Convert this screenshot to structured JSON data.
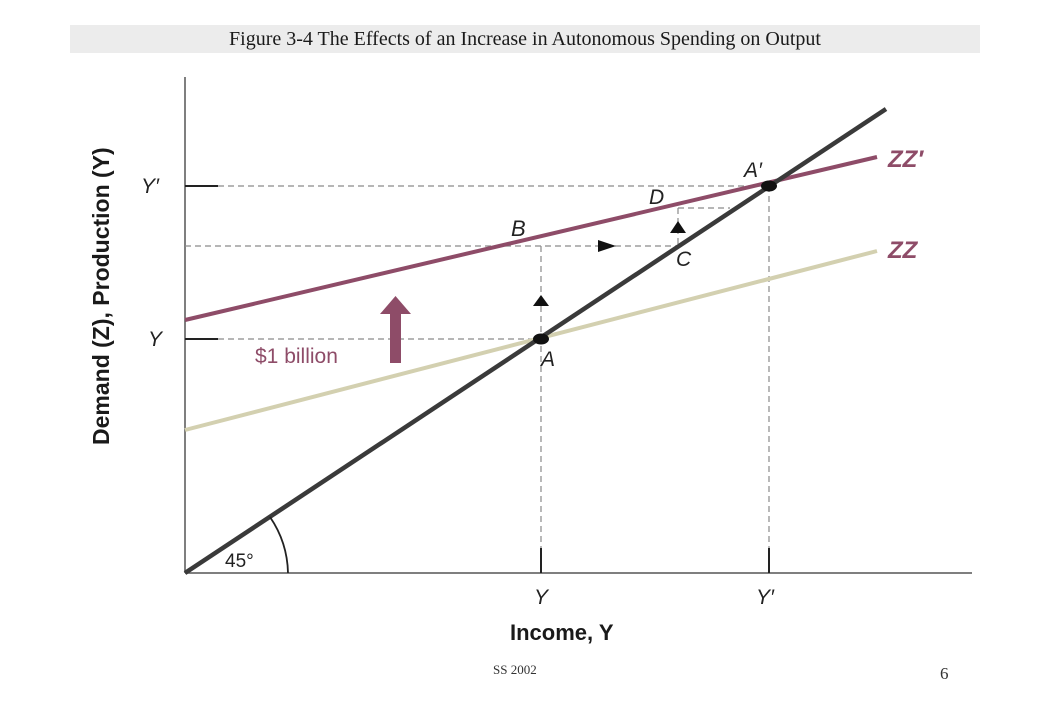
{
  "title": "Figure 3-4  The Effects of an Increase in Autonomous Spending on Output",
  "diagram": {
    "y_axis_label": "Demand (Z), Production (Y)",
    "x_axis_label": "Income, Y",
    "x_ticks": [
      "Y",
      "Y′"
    ],
    "y_ticks": [
      "Y′",
      "Y"
    ],
    "curves": {
      "zz": "ZZ",
      "zz_prime": "ZZ′"
    },
    "points": {
      "a": "A",
      "a_prime": "A′",
      "b": "B",
      "c": "C",
      "d": "D"
    },
    "shift_label": "$1 billion",
    "angle_label": "45°",
    "colors": {
      "zz": "#d3d0b0",
      "zz_prime": "#8e4c68",
      "line45": "#3a3a3a",
      "arrow": "#8e4c68"
    }
  },
  "footer": {
    "left": "SS 2002",
    "page": "6"
  }
}
